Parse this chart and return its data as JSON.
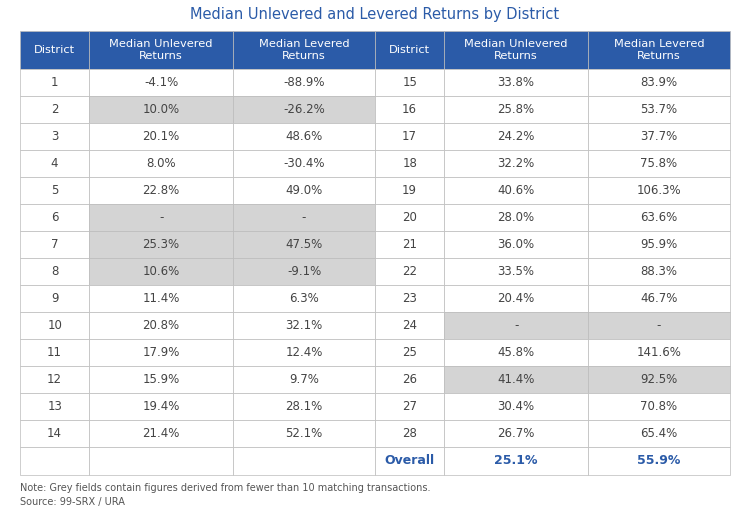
{
  "title": "Median Unlevered and Levered Returns by District",
  "col_headers": [
    "District",
    "Median Unlevered\nReturns",
    "Median Levered\nReturns"
  ],
  "left_data": [
    [
      "1",
      "-4.1%",
      "-88.9%",
      false
    ],
    [
      "2",
      "10.0%",
      "-26.2%",
      true
    ],
    [
      "3",
      "20.1%",
      "48.6%",
      false
    ],
    [
      "4",
      "8.0%",
      "-30.4%",
      false
    ],
    [
      "5",
      "22.8%",
      "49.0%",
      false
    ],
    [
      "6",
      "-",
      "-",
      true
    ],
    [
      "7",
      "25.3%",
      "47.5%",
      true
    ],
    [
      "8",
      "10.6%",
      "-9.1%",
      true
    ],
    [
      "9",
      "11.4%",
      "6.3%",
      false
    ],
    [
      "10",
      "20.8%",
      "32.1%",
      false
    ],
    [
      "11",
      "17.9%",
      "12.4%",
      false
    ],
    [
      "12",
      "15.9%",
      "9.7%",
      false
    ],
    [
      "13",
      "19.4%",
      "28.1%",
      false
    ],
    [
      "14",
      "21.4%",
      "52.1%",
      false
    ]
  ],
  "right_data": [
    [
      "15",
      "33.8%",
      "83.9%",
      false
    ],
    [
      "16",
      "25.8%",
      "53.7%",
      false
    ],
    [
      "17",
      "24.2%",
      "37.7%",
      false
    ],
    [
      "18",
      "32.2%",
      "75.8%",
      false
    ],
    [
      "19",
      "40.6%",
      "106.3%",
      false
    ],
    [
      "20",
      "28.0%",
      "63.6%",
      false
    ],
    [
      "21",
      "36.0%",
      "95.9%",
      false
    ],
    [
      "22",
      "33.5%",
      "88.3%",
      false
    ],
    [
      "23",
      "20.4%",
      "46.7%",
      false
    ],
    [
      "24",
      "-",
      "-",
      true
    ],
    [
      "25",
      "45.8%",
      "141.6%",
      false
    ],
    [
      "26",
      "41.4%",
      "92.5%",
      true
    ],
    [
      "27",
      "30.4%",
      "70.8%",
      false
    ],
    [
      "28",
      "26.7%",
      "65.4%",
      false
    ]
  ],
  "overall_row": [
    "Overall",
    "25.1%",
    "55.9%"
  ],
  "header_bg": "#2B5BA8",
  "header_text": "#FFFFFF",
  "grey_bg": "#D4D4D4",
  "white_bg": "#FFFFFF",
  "overall_text": "#2B5BA8",
  "note": "Note: Grey fields contain figures derived from fewer than 10 matching transactions.",
  "source": "Source: 99-SRX / URA",
  "title_color": "#2B5BA8",
  "border_color": "#BBBBBB",
  "text_color": "#444444"
}
